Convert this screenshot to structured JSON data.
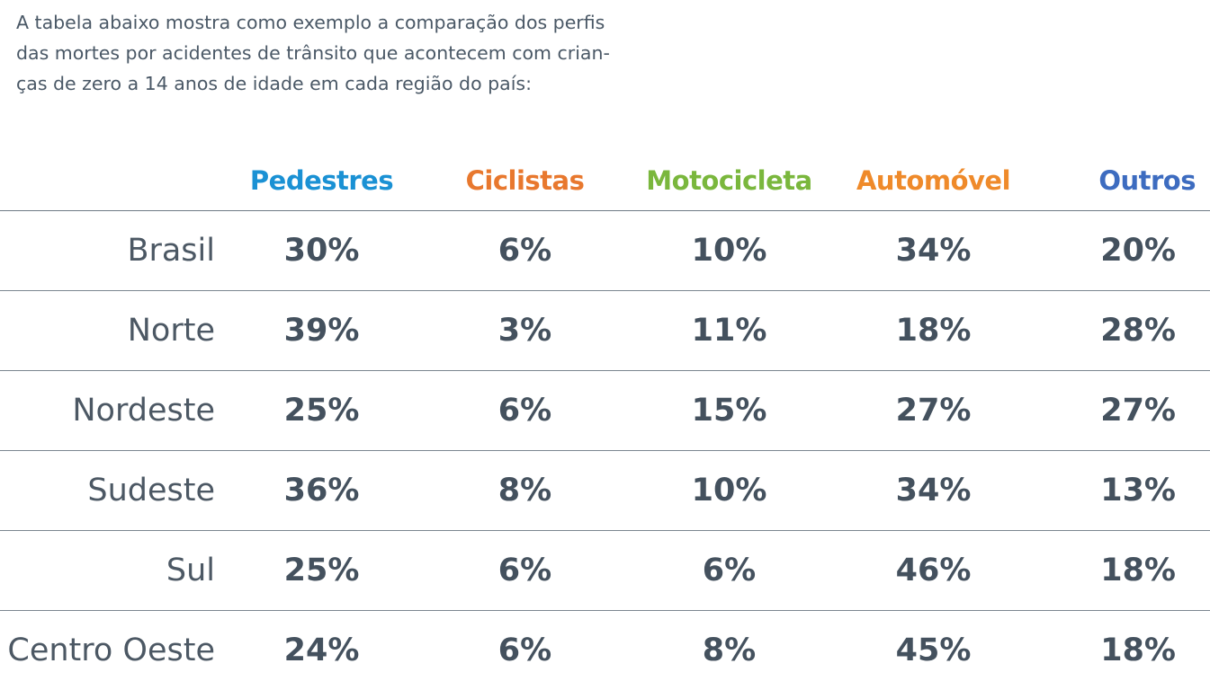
{
  "intro": {
    "lines": [
      "A tabela abaixo mostra como exemplo a comparação dos perfis",
      "das mortes por acidentes de trânsito que acontecem com crian-",
      "ças de zero a 14 anos de idade em cada região do país:"
    ]
  },
  "colors": {
    "pedestres": "#1a91d4",
    "ciclistas": "#e8782e",
    "motocicleta": "#7ab73d",
    "automovel": "#ef8a2a",
    "outros": "#3d6cc0",
    "values": "#44515e",
    "region": "#4c5864",
    "intro": "#4a5866"
  },
  "table": {
    "headers": {
      "pedestres": "Pedestres",
      "ciclistas": "Ciclistas",
      "motocicleta": "Motocicleta",
      "automovel": "Automóvel",
      "outros": "Outros"
    },
    "rows": [
      {
        "region": "Brasil",
        "pedestres": "30%",
        "ciclistas": "6%",
        "motocicleta": "10%",
        "automovel": "34%",
        "outros": "20%"
      },
      {
        "region": "Norte",
        "pedestres": "39%",
        "ciclistas": "3%",
        "motocicleta": "11%",
        "automovel": "18%",
        "outros": "28%"
      },
      {
        "region": "Nordeste",
        "pedestres": "25%",
        "ciclistas": "6%",
        "motocicleta": "15%",
        "automovel": "27%",
        "outros": "27%"
      },
      {
        "region": "Sudeste",
        "pedestres": "36%",
        "ciclistas": "8%",
        "motocicleta": "10%",
        "automovel": "34%",
        "outros": "13%"
      },
      {
        "region": "Sul",
        "pedestres": "25%",
        "ciclistas": "6%",
        "motocicleta": "6%",
        "automovel": "46%",
        "outros": "18%"
      },
      {
        "region": "Centro Oeste",
        "pedestres": "24%",
        "ciclistas": "6%",
        "motocicleta": "8%",
        "automovel": "45%",
        "outros": "18%"
      }
    ]
  }
}
